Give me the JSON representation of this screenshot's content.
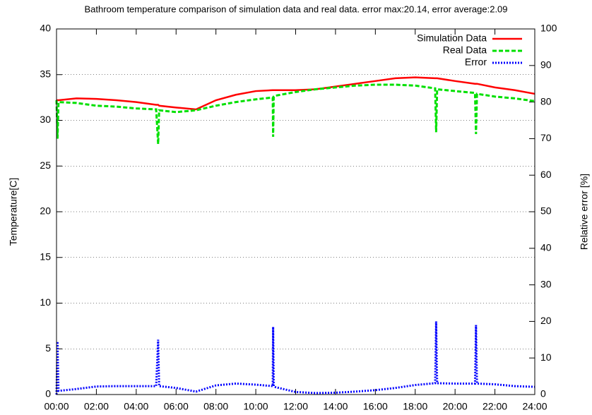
{
  "chart_data": {
    "type": "line",
    "title": "Bathroom temperature comparison of simulation data and real data. error max:20.14, error average:2.09",
    "y_label": "Temperature[C]",
    "y2_label": "Relative error [%]",
    "x": [
      0,
      0.05,
      0.1,
      1,
      2,
      3,
      4,
      5,
      5.1,
      5.15,
      6,
      7,
      8,
      9,
      10,
      10.85,
      10.87,
      10.9,
      11,
      12,
      13,
      14,
      15,
      16,
      17,
      18,
      19,
      19.05,
      19.1,
      20,
      21,
      21.05,
      21.1,
      22,
      23,
      24
    ],
    "xlim": [
      0,
      24
    ],
    "xticks": [
      {
        "value": 0,
        "label": "00:00"
      },
      {
        "value": 2,
        "label": "02:00"
      },
      {
        "value": 4,
        "label": "04:00"
      },
      {
        "value": 6,
        "label": "06:00"
      },
      {
        "value": 8,
        "label": "08:00"
      },
      {
        "value": 10,
        "label": "10:00"
      },
      {
        "value": 12,
        "label": "12:00"
      },
      {
        "value": 14,
        "label": "14:00"
      },
      {
        "value": 16,
        "label": "16:00"
      },
      {
        "value": 18,
        "label": "18:00"
      },
      {
        "value": 20,
        "label": "20:00"
      },
      {
        "value": 22,
        "label": "22:00"
      },
      {
        "value": 24,
        "label": "24:00"
      }
    ],
    "ylim": [
      0,
      40
    ],
    "yticks": [
      0,
      5,
      10,
      15,
      20,
      25,
      30,
      35,
      40
    ],
    "y2lim": [
      0,
      100
    ],
    "y2ticks": [
      0,
      10,
      20,
      30,
      40,
      50,
      60,
      70,
      80,
      90,
      100
    ],
    "grid": true,
    "legend": "top-right",
    "series": [
      {
        "name": "Simulation Data",
        "color": "#ff0000",
        "style": "solid",
        "values": [
          32.2,
          32.2,
          32.2,
          32.4,
          32.35,
          32.2,
          32.0,
          31.7,
          31.7,
          31.6,
          31.4,
          31.2,
          32.2,
          32.8,
          33.2,
          33.3,
          33.3,
          33.3,
          33.3,
          33.3,
          33.4,
          33.7,
          34.0,
          34.3,
          34.6,
          34.7,
          34.6,
          34.6,
          34.6,
          34.3,
          34.0,
          34.0,
          34.0,
          33.6,
          33.3,
          32.9
        ]
      },
      {
        "name": "Real Data",
        "color": "#00e000",
        "style": "dashed",
        "values": [
          32.2,
          28,
          32,
          31.9,
          31.6,
          31.5,
          31.3,
          31.2,
          27.4,
          31.1,
          30.9,
          31.1,
          31.6,
          32,
          32.3,
          32.5,
          28.2,
          32.6,
          32.7,
          33.1,
          33.4,
          33.6,
          33.8,
          33.9,
          33.9,
          33.8,
          33.5,
          28.7,
          33.4,
          33.2,
          33,
          28.5,
          32.9,
          32.6,
          32.4,
          32.1
        ]
      },
      {
        "name": "Error",
        "color": "#0000ff",
        "style": "dotted",
        "axis": "y2",
        "values": [
          0,
          14.5,
          1,
          1.5,
          2.2,
          2.3,
          2.3,
          2.3,
          15,
          2.3,
          1.8,
          0.8,
          2.5,
          3.0,
          2.7,
          2.3,
          18.5,
          2.3,
          2.0,
          0.7,
          0.4,
          0.5,
          0.8,
          1.2,
          1.8,
          2.6,
          3.1,
          20,
          3.1,
          3.0,
          3.0,
          19,
          3.0,
          2.8,
          2.3,
          2.1
        ]
      }
    ]
  }
}
